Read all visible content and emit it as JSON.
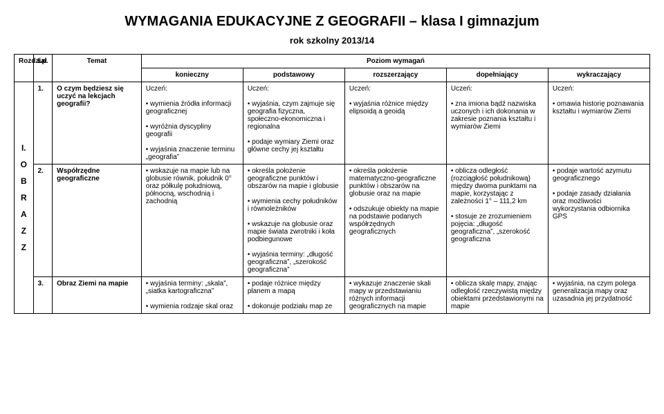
{
  "title": "WYMAGANIA EDUKACYJNE Z GEOGRAFII – klasa I gimnazjum",
  "subtitle": "rok szkolny 2013/14",
  "headers": {
    "rozdzial": "Rozdział",
    "lp": "Lp.",
    "temat": "Temat",
    "poziom": "Poziom wymagań",
    "levels": [
      "konieczny",
      "podstawowy",
      "rozszerzający",
      "dopełniający",
      "wykraczający"
    ]
  },
  "section_letters": [
    "I.",
    "O",
    "B",
    "R",
    "A",
    "Z",
    "Z"
  ],
  "rows": [
    {
      "lp": "1.",
      "temat": "O czym będziesz się uczyć na lekcjach geografii?",
      "levels": [
        "Uczeń:\n\n• wymienia źródła informacji geograficznej\n\n• wyróżnia dyscypliny geografii\n\n• wyjaśnia znaczenie terminu „geografia”",
        "Uczeń:\n\n• wyjaśnia, czym zajmuje się geografia fizyczna, społeczno-ekonomiczna i regionalna\n\n• podaje wymiary Ziemi oraz główne cechy jej kształtu",
        "Uczeń:\n\n• wyjaśnia różnice między elipsoidą a geoidą",
        "Uczeń:\n\n• zna imiona bądź nazwiska uczonych i ich dokonania w zakresie poznania kształtu i wymiarów Ziemi",
        "Uczeń:\n\n• omawia historię poznawania kształtu i wymiarów Ziemi"
      ]
    },
    {
      "lp": "2.",
      "temat": "Współrzędne geograficzne",
      "levels": [
        "• wskazuje na mapie lub na globusie równik, południk 0° oraz półkulę południową, północną, wschodnią i zachodnią",
        "• określa położenie geograficzne punktów i obszarów na mapie i globusie\n\n• wymienia cechy południków i równoleżników\n\n• wskazuje na globusie oraz mapie świata zwrotniki i koła podbiegunowe\n\n• wyjaśnia terminy: „długość geograficzna”, „szerokość geograficzna”",
        "• określa położenie matematyczno-geograficzne punktów i obszarów na globusie oraz na mapie\n\n• odszukuje obiekty na mapie na podstawie podanych współrzędnych geograficznych",
        "• oblicza odległość (rozciągłość południkową) między dwoma punktami na mapie, korzystając z zależności 1° – 111,2 km\n\n• stosuje ze zrozumieniem pojęcia: „długość geograficzna”, „szerokość geograficzna",
        "• podaje wartość azymutu geograficznego\n\n• podaje zasady działania oraz możliwości wykorzystania odbiornika GPS"
      ]
    },
    {
      "lp": "3.",
      "temat": "Obraz Ziemi na mapie",
      "levels": [
        "• wyjaśnia terminy: „skala”, „siatka kartograficzna”\n\n• wymienia rodzaje skal oraz",
        "• podaje różnice między planem a mapą\n\n• dokonuje podziału map ze",
        "• wykazuje znaczenie skali mapy w przedstawianiu różnych informacji geograficznych na mapie",
        "• oblicza skalę mapy, znając odległość rzeczywistą między obiektami przedstawionymi na mapie",
        "• wyjaśnia, na czym polega generalizacja mapy oraz uzasadnia jej przydatność"
      ]
    }
  ]
}
